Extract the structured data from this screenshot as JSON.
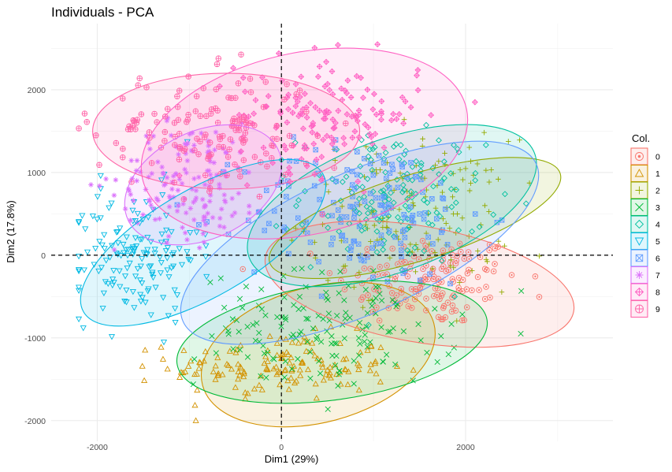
{
  "chart_data": {
    "type": "scatter",
    "title": "Individuals - PCA",
    "xlabel": "Dim1 (29%)",
    "ylabel": "Dim2 (17.8%)",
    "xlim": [
      -2500,
      3600
    ],
    "ylim": [
      -2250,
      2800
    ],
    "x_ticks": [
      -2000,
      0,
      2000
    ],
    "y_ticks": [
      -2000,
      -1000,
      0,
      1000,
      2000
    ],
    "x_tick_labels": [
      "-2000",
      "0",
      "2000"
    ],
    "y_tick_labels": [
      "-2000",
      "-1000",
      "0",
      "1000",
      "2000"
    ],
    "grid": true,
    "reference_lines": {
      "x": 0,
      "y": 0,
      "style": "dashed"
    },
    "legend": {
      "title": "Col.",
      "position": "right",
      "entries": [
        "0",
        "1",
        "2",
        "3",
        "4",
        "5",
        "6",
        "7",
        "8",
        "9"
      ]
    },
    "series": [
      {
        "name": "0",
        "color": "#F8766D",
        "marker": "circle-dot",
        "center": [
          1600,
          -300
        ],
        "sd_x": 500,
        "sd_y": 280,
        "ellipse": {
          "cx": 1500,
          "cy": -350,
          "rx": 1700,
          "ry": 700,
          "angle_deg": -10
        }
      },
      {
        "name": "1",
        "color": "#D39200",
        "marker": "triangle",
        "center": [
          0,
          -1350
        ],
        "sd_x": 600,
        "sd_y": 200,
        "ellipse": {
          "cx": 400,
          "cy": -1200,
          "rx": 1300,
          "ry": 820,
          "angle_deg": 15
        }
      },
      {
        "name": "2",
        "color": "#93AA00",
        "marker": "plus",
        "center": [
          1400,
          500
        ],
        "sd_x": 550,
        "sd_y": 450,
        "ellipse": {
          "cx": 1450,
          "cy": 450,
          "rx": 1650,
          "ry": 520,
          "angle_deg": 17
        }
      },
      {
        "name": "3",
        "color": "#00BA38",
        "marker": "x",
        "center": [
          500,
          -900
        ],
        "sd_x": 700,
        "sd_y": 350,
        "ellipse": {
          "cx": 550,
          "cy": -1050,
          "rx": 1700,
          "ry": 700,
          "angle_deg": 8
        }
      },
      {
        "name": "4",
        "color": "#00C19F",
        "marker": "diamond",
        "center": [
          1200,
          700
        ],
        "sd_x": 500,
        "sd_y": 400,
        "ellipse": {
          "cx": 1200,
          "cy": 600,
          "rx": 1650,
          "ry": 800,
          "angle_deg": 20
        }
      },
      {
        "name": "5",
        "color": "#00B9E3",
        "marker": "triangle-down",
        "center": [
          -1600,
          0
        ],
        "sd_x": 350,
        "sd_y": 400,
        "ellipse": {
          "cx": -850,
          "cy": 150,
          "rx": 1500,
          "ry": 650,
          "angle_deg": 30
        }
      },
      {
        "name": "6",
        "color": "#619CFF",
        "marker": "square-x",
        "center": [
          900,
          500
        ],
        "sd_x": 650,
        "sd_y": 450,
        "ellipse": {
          "cx": 850,
          "cy": 150,
          "rx": 2100,
          "ry": 850,
          "angle_deg": 24
        }
      },
      {
        "name": "7",
        "color": "#DB72FB",
        "marker": "asterisk",
        "center": [
          -1000,
          900
        ],
        "sd_x": 400,
        "sd_y": 350,
        "ellipse": {
          "cx": -850,
          "cy": 850,
          "rx": 900,
          "ry": 650,
          "angle_deg": 25
        }
      },
      {
        "name": "8",
        "color": "#FF61C3",
        "marker": "diamond-plus",
        "center": [
          500,
          1700
        ],
        "sd_x": 500,
        "sd_y": 350,
        "ellipse": {
          "cx": 250,
          "cy": 1350,
          "rx": 1800,
          "ry": 1100,
          "angle_deg": 12
        }
      },
      {
        "name": "9",
        "color": "#FF66A9",
        "marker": "circle-plus",
        "center": [
          -800,
          1500
        ],
        "sd_x": 600,
        "sd_y": 350,
        "ellipse": {
          "cx": -600,
          "cy": 1500,
          "rx": 1450,
          "ry": 700,
          "angle_deg": 0
        }
      }
    ]
  }
}
